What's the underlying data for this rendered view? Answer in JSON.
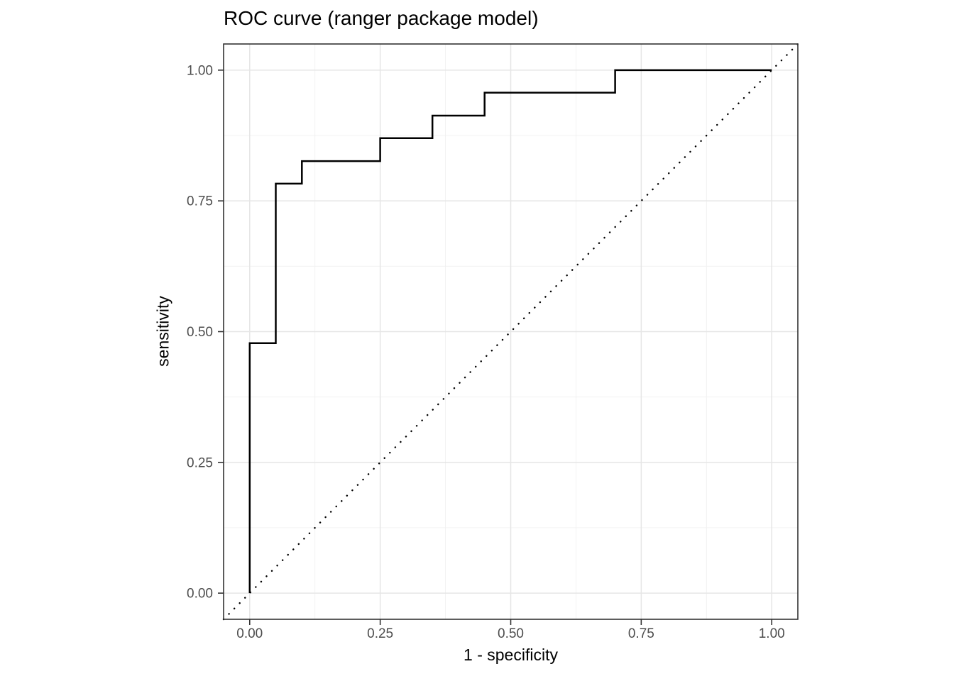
{
  "colors": {
    "background": "#ffffff",
    "panel_background": "#ffffff",
    "panel_border": "#333333",
    "grid_major": "#e6e6e6",
    "grid_minor": "#f0f0f0",
    "tick_mark": "#333333",
    "tick_label": "#4d4d4d",
    "title": "#000000",
    "axis_title": "#000000",
    "roc_line": "#000000",
    "diagonal_line": "#000000"
  },
  "chart_data": {
    "type": "line",
    "title": "ROC curve (ranger package model)",
    "xlabel": "1 - specificity",
    "ylabel": "sensitivity",
    "xlim": [
      -0.05,
      1.05
    ],
    "ylim": [
      -0.05,
      1.05
    ],
    "grid": "on",
    "legend": "none",
    "x_ticks": {
      "values": [
        0,
        0.25,
        0.5,
        0.75,
        1.0
      ],
      "labels": [
        "0.00",
        "0.25",
        "0.50",
        "0.75",
        "1.00"
      ],
      "minor": [
        0.125,
        0.375,
        0.625,
        0.875
      ]
    },
    "y_ticks": {
      "values": [
        0,
        0.25,
        0.5,
        0.75,
        1.0
      ],
      "labels": [
        "0.00",
        "0.25",
        "0.50",
        "0.75",
        "1.00"
      ],
      "minor": [
        0.125,
        0.375,
        0.625,
        0.875
      ]
    },
    "series": [
      {
        "name": "roc-step-curve",
        "style": "step-hv",
        "line_dash": "solid",
        "points": [
          [
            0.0,
            0.0
          ],
          [
            0.0,
            0.478
          ],
          [
            0.05,
            0.783
          ],
          [
            0.1,
            0.826
          ],
          [
            0.25,
            0.87
          ],
          [
            0.35,
            0.913
          ],
          [
            0.45,
            0.957
          ],
          [
            0.7,
            1.0
          ],
          [
            1.0,
            1.0
          ]
        ]
      },
      {
        "name": "chance-diagonal",
        "style": "straight",
        "line_dash": "dotted",
        "points": [
          [
            -0.05,
            -0.05
          ],
          [
            1.05,
            1.05
          ]
        ]
      }
    ]
  }
}
